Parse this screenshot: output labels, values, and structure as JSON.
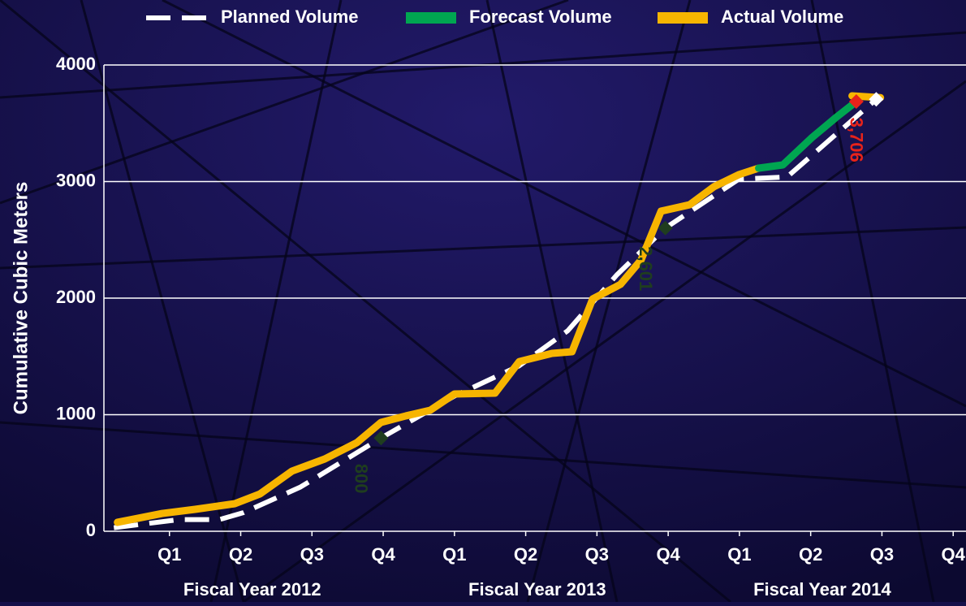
{
  "chart_data": {
    "type": "line",
    "y_label": "Cumulative Cubic Meters",
    "xlim": [
      0.08,
      12.18
    ],
    "xticks": [
      {
        "value": 1,
        "label": "Q1"
      },
      {
        "value": 2,
        "label": "Q2"
      },
      {
        "value": 3,
        "label": "Q3"
      },
      {
        "value": 4,
        "label": "Q4"
      },
      {
        "value": 5,
        "label": "Q1"
      },
      {
        "value": 6,
        "label": "Q2"
      },
      {
        "value": 7,
        "label": "Q3"
      },
      {
        "value": 8,
        "label": "Q4"
      },
      {
        "value": 9,
        "label": "Q1"
      },
      {
        "value": 10,
        "label": "Q2"
      },
      {
        "value": 11,
        "label": "Q3"
      },
      {
        "value": 12,
        "label": "Q4"
      }
    ],
    "x_groups": [
      "Fiscal Year 2012",
      "Fiscal Year 2013",
      "Fiscal Year 2014"
    ],
    "ylim": [
      0,
      4000
    ],
    "yticks": [
      0,
      1000,
      2000,
      3000,
      4000
    ],
    "grid": true,
    "series": [
      {
        "name": "Planned Volume",
        "color": "#ffffff",
        "dashed": true,
        "x": [
          0.22,
          1.13,
          1.7,
          2.04,
          2.84,
          3.97,
          5.0,
          5.91,
          6.59,
          7.28,
          7.96,
          8.99,
          9.67,
          10.92
        ],
        "values": [
          30,
          100,
          100,
          160,
          380,
          800,
          1160,
          1420,
          1720,
          2200,
          2601,
          3020,
          3040,
          3706
        ],
        "value_labels": [
          null,
          null,
          null,
          null,
          null,
          "800",
          null,
          null,
          null,
          null,
          "2,601",
          null,
          null,
          "3,706"
        ],
        "value_label_colors": [
          null,
          null,
          null,
          null,
          null,
          "#1f3d1f",
          null,
          null,
          null,
          null,
          "#1f3d1f",
          null,
          null,
          "#e8231a"
        ]
      },
      {
        "name": "Forecast Volume",
        "color": "#00a651",
        "dashed": false,
        "x": [
          9.27,
          9.61,
          10.01,
          10.35,
          10.64
        ],
        "values": [
          3115,
          3143,
          3373,
          3547,
          3686
        ]
      },
      {
        "name": "Actual Volume",
        "color": "#f7b500",
        "dashed": false,
        "x": [
          0.27,
          0.9,
          1.36,
          1.92,
          2.27,
          2.72,
          3.18,
          3.63,
          3.97,
          4.32,
          4.66,
          5.0,
          5.57,
          5.91,
          6.37,
          6.65,
          6.94,
          7.33,
          7.62,
          7.9,
          8.3,
          8.64,
          8.99,
          9.27,
          9.9,
          10.58,
          10.98
        ],
        "values": [
          77,
          153,
          188,
          237,
          320,
          516,
          620,
          760,
          934,
          990,
          1038,
          1178,
          1185,
          1456,
          1526,
          1540,
          1993,
          2118,
          2328,
          2746,
          2801,
          2955,
          3059,
          3115,
          null,
          3735,
          3720
        ]
      }
    ]
  }
}
